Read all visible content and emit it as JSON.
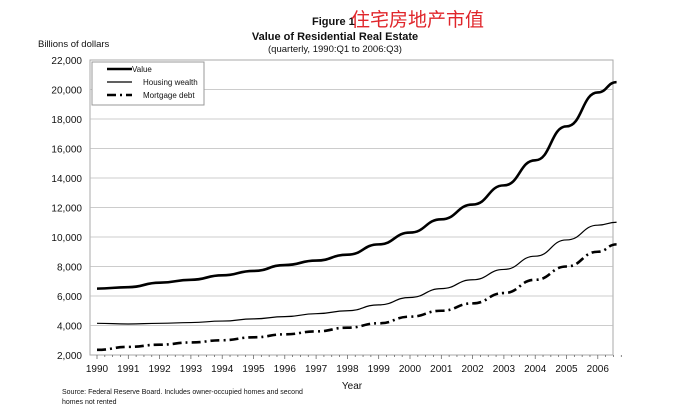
{
  "chart_data": {
    "type": "line",
    "figure_label": "Figure 1",
    "annotation_cn": "住宅房地产市值",
    "title": "Value of Residential Real Estate",
    "subtitle": "(quarterly, 1990:Q1 to 2006:Q3)",
    "ylabel": "Billions of dollars",
    "xlabel": "Year",
    "ylim": [
      2000,
      22000
    ],
    "yticks": [
      "2,000",
      "4,000",
      "6,000",
      "8,000",
      "10,000",
      "12,000",
      "14,000",
      "16,000",
      "18,000",
      "20,000",
      "22,000"
    ],
    "ytick_values": [
      2000,
      4000,
      6000,
      8000,
      10000,
      12000,
      14000,
      16000,
      18000,
      20000,
      22000
    ],
    "xticks": [
      "1990",
      "1991",
      "1992",
      "1993",
      "1994",
      "1995",
      "1996",
      "1997",
      "1998",
      "1999",
      "2000",
      "2001",
      "2002",
      "2003",
      "2004",
      "2005",
      "2006"
    ],
    "x": [
      1990,
      1991,
      1992,
      1993,
      1994,
      1995,
      1996,
      1997,
      1998,
      1999,
      2000,
      2001,
      2002,
      2003,
      2004,
      2005,
      2006,
      2006.6
    ],
    "series": [
      {
        "name": "Value",
        "values": [
          6500,
          6600,
          6900,
          7100,
          7400,
          7700,
          8100,
          8400,
          8800,
          9500,
          10300,
          11200,
          12200,
          13500,
          15200,
          17500,
          19800,
          20500
        ]
      },
      {
        "name": "Housing wealth",
        "values": [
          4150,
          4100,
          4150,
          4200,
          4300,
          4450,
          4600,
          4800,
          5000,
          5400,
          5900,
          6500,
          7100,
          7800,
          8700,
          9800,
          10800,
          11000
        ]
      },
      {
        "name": "Mortgage debt",
        "values": [
          2350,
          2550,
          2700,
          2850,
          3000,
          3200,
          3400,
          3600,
          3850,
          4150,
          4600,
          5000,
          5500,
          6200,
          7100,
          8000,
          9000,
          9500
        ]
      }
    ],
    "legend": "top-left",
    "grid": "horizontal",
    "source": "Source: Federal Reserve Board.  Includes owner-occupied homes and second",
    "source_line2": "homes not rented",
    "colors": {
      "annotation": "#e0262b",
      "line": "#000000"
    }
  }
}
